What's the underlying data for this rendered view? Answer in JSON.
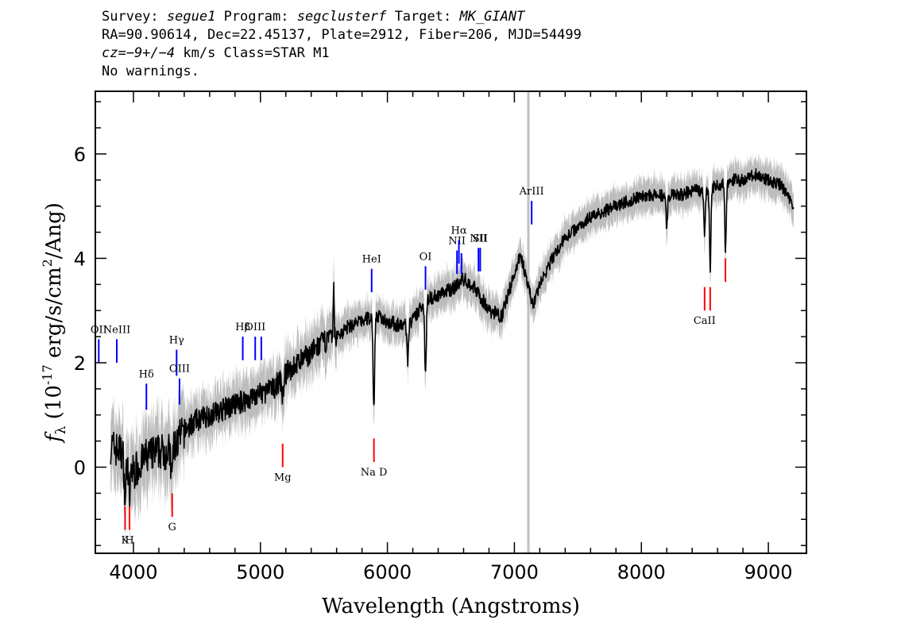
{
  "header": {
    "line1": {
      "survey_label": "Survey:",
      "survey": "segue1",
      "program_label": "Program:",
      "program": "segclusterf",
      "target_label": "Target:",
      "target": "MK_GIANT"
    },
    "line2": "RA=90.90614, Dec=22.45137, Plate=2912, Fiber=206, MJD=54499",
    "line3": {
      "cz": "cz=−9+/−4",
      "rest": " km/s Class=STAR M1"
    },
    "line4": "No warnings."
  },
  "chart_data": {
    "type": "line",
    "xlabel": "Wavelength (Angstroms)",
    "ylabel": "f_λ (10^-17 erg/s/cm^2/Ang)",
    "xlim": [
      3700,
      9300
    ],
    "ylim": [
      -1.65,
      7.2
    ],
    "x_ticks": [
      4000,
      5000,
      6000,
      7000,
      8000,
      9000
    ],
    "y_ticks": [
      0,
      2,
      4,
      6
    ],
    "grid": false,
    "colors": {
      "flux": "#000000",
      "error_band": "#bdbdbd",
      "sky_line": "#c0c0c0",
      "emission": "#0000ff",
      "absorption": "#ff0000"
    },
    "flux_continuum": {
      "x": [
        3820,
        3900,
        4000,
        4100,
        4200,
        4300,
        4400,
        4500,
        4600,
        4700,
        4800,
        4900,
        5000,
        5100,
        5200,
        5300,
        5400,
        5500,
        5600,
        5700,
        5800,
        5900,
        6000,
        6100,
        6200,
        6300,
        6400,
        6500,
        6600,
        6700,
        6800,
        6900,
        7000,
        7050,
        7100,
        7150,
        7200,
        7300,
        7400,
        7500,
        7600,
        7700,
        7800,
        7900,
        8000,
        8100,
        8200,
        8300,
        8400,
        8500,
        8600,
        8700,
        8800,
        8900,
        9000,
        9100,
        9200
      ],
      "y": [
        0.4,
        0.3,
        -0.1,
        0.2,
        0.3,
        0.3,
        0.7,
        0.9,
        1.0,
        1.1,
        1.2,
        1.3,
        1.4,
        1.5,
        1.8,
        2.0,
        2.2,
        2.4,
        2.5,
        2.7,
        2.8,
        2.9,
        2.8,
        2.7,
        2.8,
        3.2,
        3.3,
        3.4,
        3.6,
        3.4,
        3.0,
        2.9,
        3.7,
        4.1,
        3.5,
        3.1,
        3.5,
        4.0,
        4.4,
        4.6,
        4.8,
        4.9,
        5.0,
        5.1,
        5.2,
        5.2,
        5.2,
        5.2,
        5.3,
        5.3,
        5.4,
        5.5,
        5.5,
        5.6,
        5.5,
        5.4,
        5.0
      ]
    },
    "absorption_features": [
      {
        "x": 3934,
        "depth": 0.8
      },
      {
        "x": 3969,
        "depth": 0.7
      },
      {
        "x": 4300,
        "depth": 0.5
      },
      {
        "x": 5175,
        "depth": 0.4
      },
      {
        "x": 5893,
        "depth": 1.8
      },
      {
        "x": 6160,
        "depth": 0.7
      },
      {
        "x": 6300,
        "depth": 1.4
      },
      {
        "x": 8200,
        "depth": 0.6
      },
      {
        "x": 8498,
        "depth": 0.8
      },
      {
        "x": 8542,
        "depth": 1.5
      },
      {
        "x": 8662,
        "depth": 1.3
      }
    ],
    "spikes": [
      {
        "x": 5577,
        "height": 1.3
      }
    ],
    "sky_line_x": 7110,
    "emission_lines": [
      {
        "label": "OII",
        "x": 3727,
        "y0": 2.0,
        "y1": 2.45
      },
      {
        "label": "NeIII",
        "x": 3869,
        "y0": 2.0,
        "y1": 2.45
      },
      {
        "label": "Hδ",
        "x": 4102,
        "y0": 1.1,
        "y1": 1.6
      },
      {
        "label": "Hγ",
        "x": 4340,
        "y0": 1.75,
        "y1": 2.25
      },
      {
        "label": "OIII",
        "x": 4363,
        "y0": 1.2,
        "y1": 1.7
      },
      {
        "label": "Hβ",
        "x": 4861,
        "y0": 2.05,
        "y1": 2.5
      },
      {
        "label": "OIII",
        "x": 4959,
        "y0": 2.05,
        "y1": 2.5
      },
      {
        "label": "",
        "x": 5007,
        "y0": 2.05,
        "y1": 2.5
      },
      {
        "label": "HeI",
        "x": 5876,
        "y0": 3.35,
        "y1": 3.8
      },
      {
        "label": "OI",
        "x": 6300,
        "y0": 3.4,
        "y1": 3.85
      },
      {
        "label": "NII",
        "x": 6548,
        "y0": 3.7,
        "y1": 4.15
      },
      {
        "label": "Hα",
        "x": 6563,
        "y0": 3.9,
        "y1": 4.35
      },
      {
        "label": "",
        "x": 6583,
        "y0": 3.7,
        "y1": 4.1
      },
      {
        "label": "NII",
        "x": 6717,
        "y0": 3.75,
        "y1": 4.2
      },
      {
        "label": "SII",
        "x": 6731,
        "y0": 3.75,
        "y1": 4.2
      },
      {
        "label": "ArIII",
        "x": 7136,
        "y0": 4.65,
        "y1": 5.1
      }
    ],
    "absorption_lines": [
      {
        "label": "K",
        "x": 3934,
        "y0": -1.2,
        "y1": -0.75
      },
      {
        "label": "H",
        "x": 3969,
        "y0": -1.2,
        "y1": -0.75
      },
      {
        "label": "G",
        "x": 4305,
        "y0": -0.95,
        "y1": -0.5
      },
      {
        "label": "Mg",
        "x": 5175,
        "y0": 0,
        "y1": 0.45
      },
      {
        "label": "Na D",
        "x": 5894,
        "y0": 0.1,
        "y1": 0.55
      },
      {
        "label": "CaII",
        "x": 8498,
        "y0": 3.0,
        "y1": 3.45
      },
      {
        "label": "",
        "x": 8542,
        "y0": 3.0,
        "y1": 3.45
      },
      {
        "label": "",
        "x": 8662,
        "y0": 3.55,
        "y1": 4.0
      }
    ]
  }
}
